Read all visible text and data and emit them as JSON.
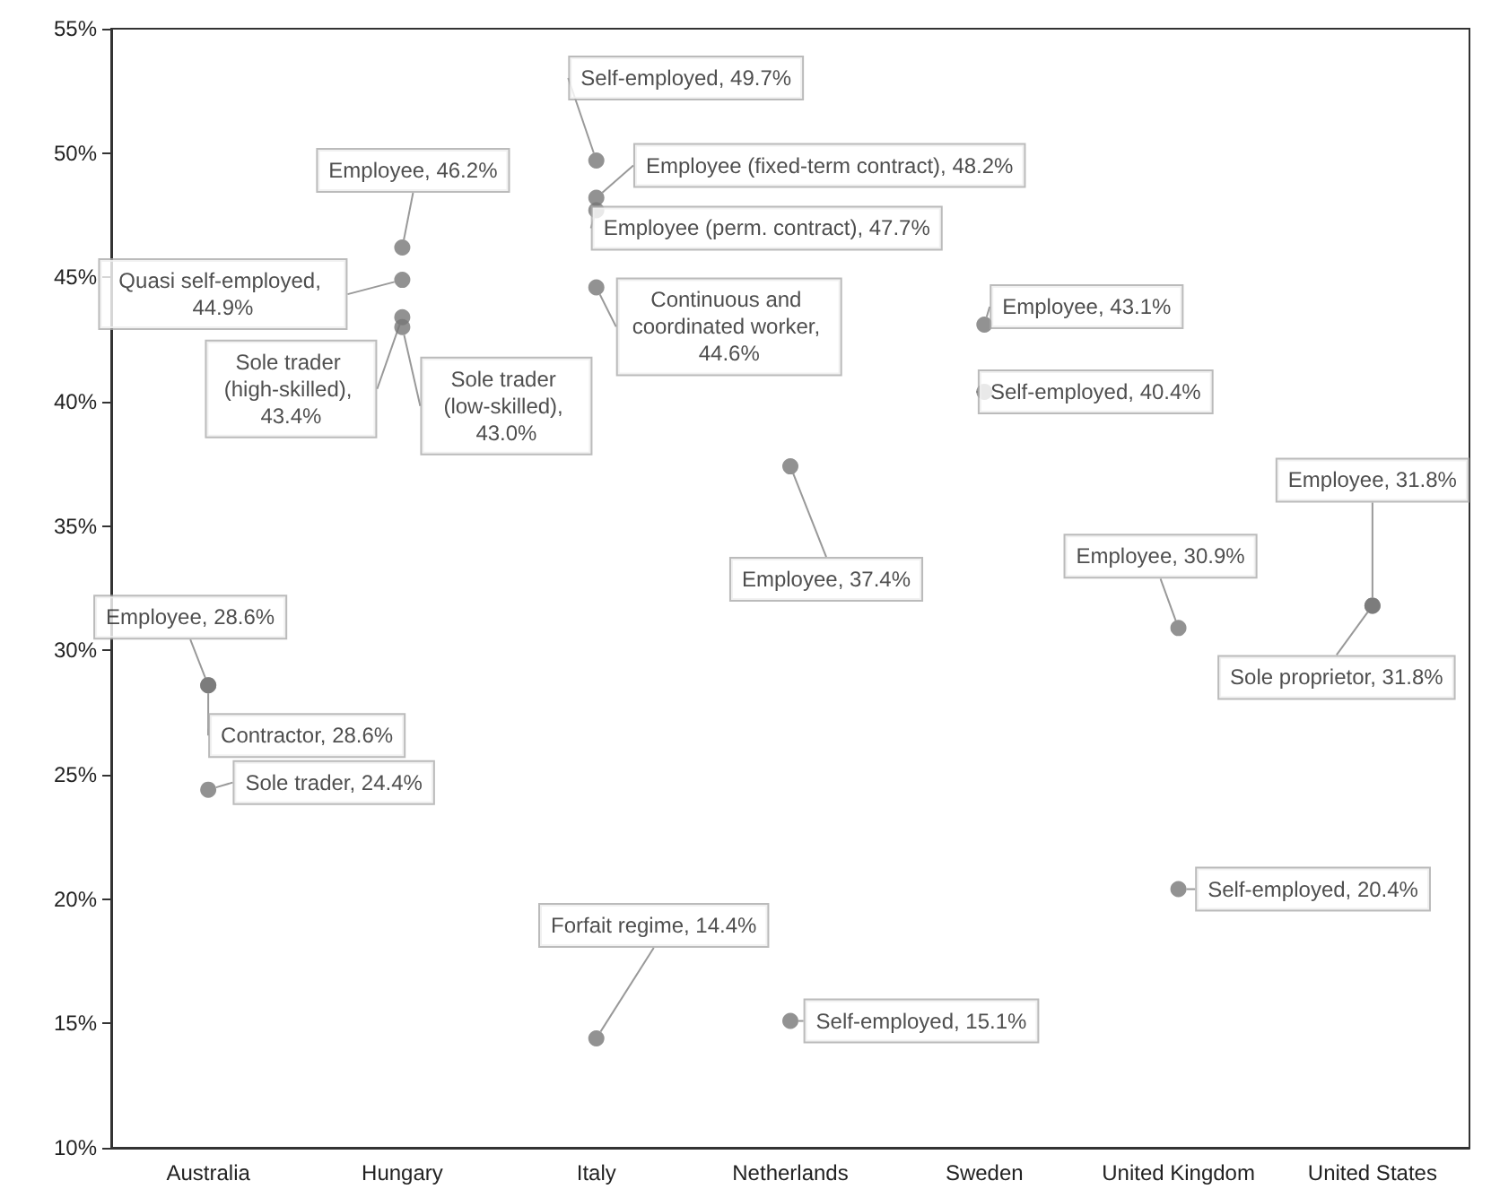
{
  "chart_data": {
    "type": "scatter",
    "categories": [
      "Australia",
      "Hungary",
      "Italy",
      "Netherlands",
      "Sweden",
      "United Kingdom",
      "United States"
    ],
    "ylim": [
      10,
      55
    ],
    "yticks": [
      {
        "value": 10,
        "label": "10%"
      },
      {
        "value": 15,
        "label": "15%"
      },
      {
        "value": 20,
        "label": "20%"
      },
      {
        "value": 25,
        "label": "25%"
      },
      {
        "value": 30,
        "label": "30%"
      },
      {
        "value": 35,
        "label": "35%"
      },
      {
        "value": 40,
        "label": "40%"
      },
      {
        "value": 45,
        "label": "45%"
      },
      {
        "value": 50,
        "label": "50%"
      },
      {
        "value": 55,
        "label": "55%"
      }
    ],
    "grid": false,
    "marker": "circle",
    "series": [
      {
        "color": "#777777",
        "x": [
          "Australia",
          "Australia",
          "Australia",
          "Hungary",
          "Hungary",
          "Hungary",
          "Hungary",
          "Italy",
          "Italy",
          "Italy",
          "Italy",
          "Italy",
          "Netherlands",
          "Netherlands",
          "Sweden",
          "Sweden",
          "United Kingdom",
          "United Kingdom",
          "United States",
          "United States"
        ],
        "values": [
          28.6,
          28.6,
          24.4,
          46.2,
          44.9,
          43.4,
          43.0,
          49.7,
          48.2,
          47.7,
          44.6,
          14.4,
          37.4,
          15.1,
          43.1,
          40.4,
          30.9,
          20.4,
          31.8,
          31.8
        ],
        "value_labels": [
          "Employee, 28.6%",
          "Contractor, 28.6%",
          "Sole trader, 24.4%",
          "Employee, 46.2%",
          "Quasi self-employed, 44.9%",
          "Sole trader (high-skilled), 43.4%",
          "Sole trader (low-skilled), 43.0%",
          "Self-employed, 49.7%",
          "Employee (fixed-term contract), 48.2%",
          "Employee (perm. contract), 47.7%",
          "Continuous and coordinated worker, 44.6%",
          "Forfait regime, 14.4%",
          "Employee, 37.4%",
          "Self-employed, 15.1%",
          "Employee, 43.1%",
          "Self-employed, 40.4%",
          "Employee, 30.9%",
          "Self-employed, 20.4%",
          "Employee, 31.8%",
          "Sole proprietor, 31.8%"
        ]
      }
    ]
  }
}
